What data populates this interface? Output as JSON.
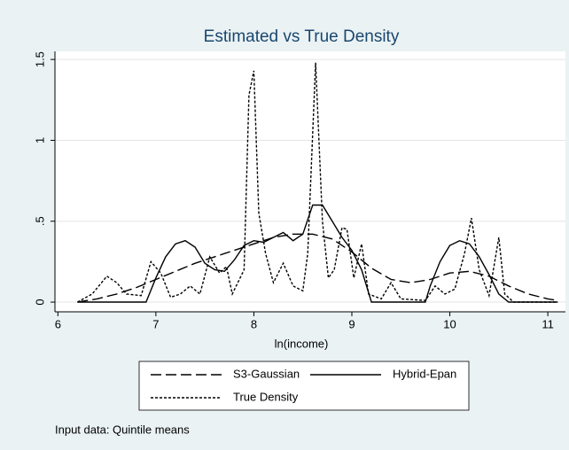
{
  "chart_data": {
    "type": "line",
    "title": "Estimated vs True Density",
    "xlabel": "ln(income)",
    "note": "Input data: Quintile means",
    "xlim": [
      5.97,
      11.18
    ],
    "xticks": [
      6,
      7,
      8,
      9,
      10,
      11
    ],
    "ylim": [
      -0.06,
      1.55
    ],
    "yticks": [
      0,
      {
        "value": 0.5,
        "label": ".5"
      },
      1,
      1.5
    ],
    "grid": true,
    "legend": "bottom",
    "series": [
      {
        "name": "S3-Gaussian",
        "color": "#000000",
        "dash": "long",
        "x": [
          6.2,
          6.4,
          6.6,
          6.8,
          7.0,
          7.2,
          7.4,
          7.6,
          7.8,
          8.0,
          8.2,
          8.4,
          8.6,
          8.8,
          9.0,
          9.2,
          9.4,
          9.6,
          9.8,
          10.0,
          10.2,
          10.4,
          10.6,
          10.8,
          11.0,
          11.1
        ],
        "values": [
          0,
          0.02,
          0.05,
          0.09,
          0.14,
          0.19,
          0.24,
          0.28,
          0.32,
          0.36,
          0.4,
          0.42,
          0.42,
          0.39,
          0.31,
          0.21,
          0.14,
          0.12,
          0.14,
          0.18,
          0.19,
          0.16,
          0.1,
          0.05,
          0.02,
          0.01
        ]
      },
      {
        "name": "Hybrid-Epan",
        "color": "#000000",
        "dash": "solid",
        "x": [
          6.2,
          6.9,
          7.0,
          7.1,
          7.2,
          7.3,
          7.4,
          7.5,
          7.6,
          7.7,
          7.8,
          7.9,
          8.0,
          8.1,
          8.2,
          8.3,
          8.4,
          8.5,
          8.6,
          8.7,
          8.8,
          8.9,
          9.0,
          9.1,
          9.2,
          9.75,
          9.8,
          9.9,
          10.0,
          10.1,
          10.2,
          10.3,
          10.4,
          10.5,
          10.6,
          11.1
        ],
        "values": [
          0,
          0,
          0.15,
          0.28,
          0.36,
          0.38,
          0.34,
          0.24,
          0.2,
          0.19,
          0.26,
          0.35,
          0.38,
          0.37,
          0.4,
          0.43,
          0.38,
          0.42,
          0.6,
          0.6,
          0.5,
          0.4,
          0.32,
          0.2,
          0,
          0,
          0.1,
          0.25,
          0.35,
          0.38,
          0.36,
          0.28,
          0.17,
          0.05,
          0,
          0
        ]
      },
      {
        "name": "True Density",
        "color": "#000000",
        "dash": "short",
        "x": [
          6.2,
          6.35,
          6.5,
          6.6,
          6.7,
          6.85,
          6.95,
          7.05,
          7.15,
          7.25,
          7.35,
          7.45,
          7.55,
          7.65,
          7.72,
          7.78,
          7.9,
          7.95,
          8.0,
          8.05,
          8.12,
          8.2,
          8.3,
          8.4,
          8.5,
          8.55,
          8.63,
          8.7,
          8.76,
          8.82,
          8.9,
          8.95,
          9.02,
          9.1,
          9.17,
          9.3,
          9.4,
          9.5,
          9.75,
          9.85,
          9.95,
          10.05,
          10.15,
          10.22,
          10.3,
          10.4,
          10.5,
          10.56,
          10.65,
          11.1
        ],
        "values": [
          0,
          0.05,
          0.16,
          0.12,
          0.05,
          0.04,
          0.25,
          0.18,
          0.03,
          0.05,
          0.1,
          0.05,
          0.28,
          0.18,
          0.22,
          0.05,
          0.2,
          1.28,
          1.43,
          0.55,
          0.3,
          0.12,
          0.24,
          0.1,
          0.07,
          0.3,
          1.48,
          0.5,
          0.15,
          0.2,
          0.46,
          0.45,
          0.15,
          0.36,
          0.05,
          0.02,
          0.12,
          0.02,
          0.01,
          0.1,
          0.05,
          0.08,
          0.3,
          0.52,
          0.2,
          0.04,
          0.4,
          0.05,
          0,
          0
        ]
      }
    ]
  }
}
